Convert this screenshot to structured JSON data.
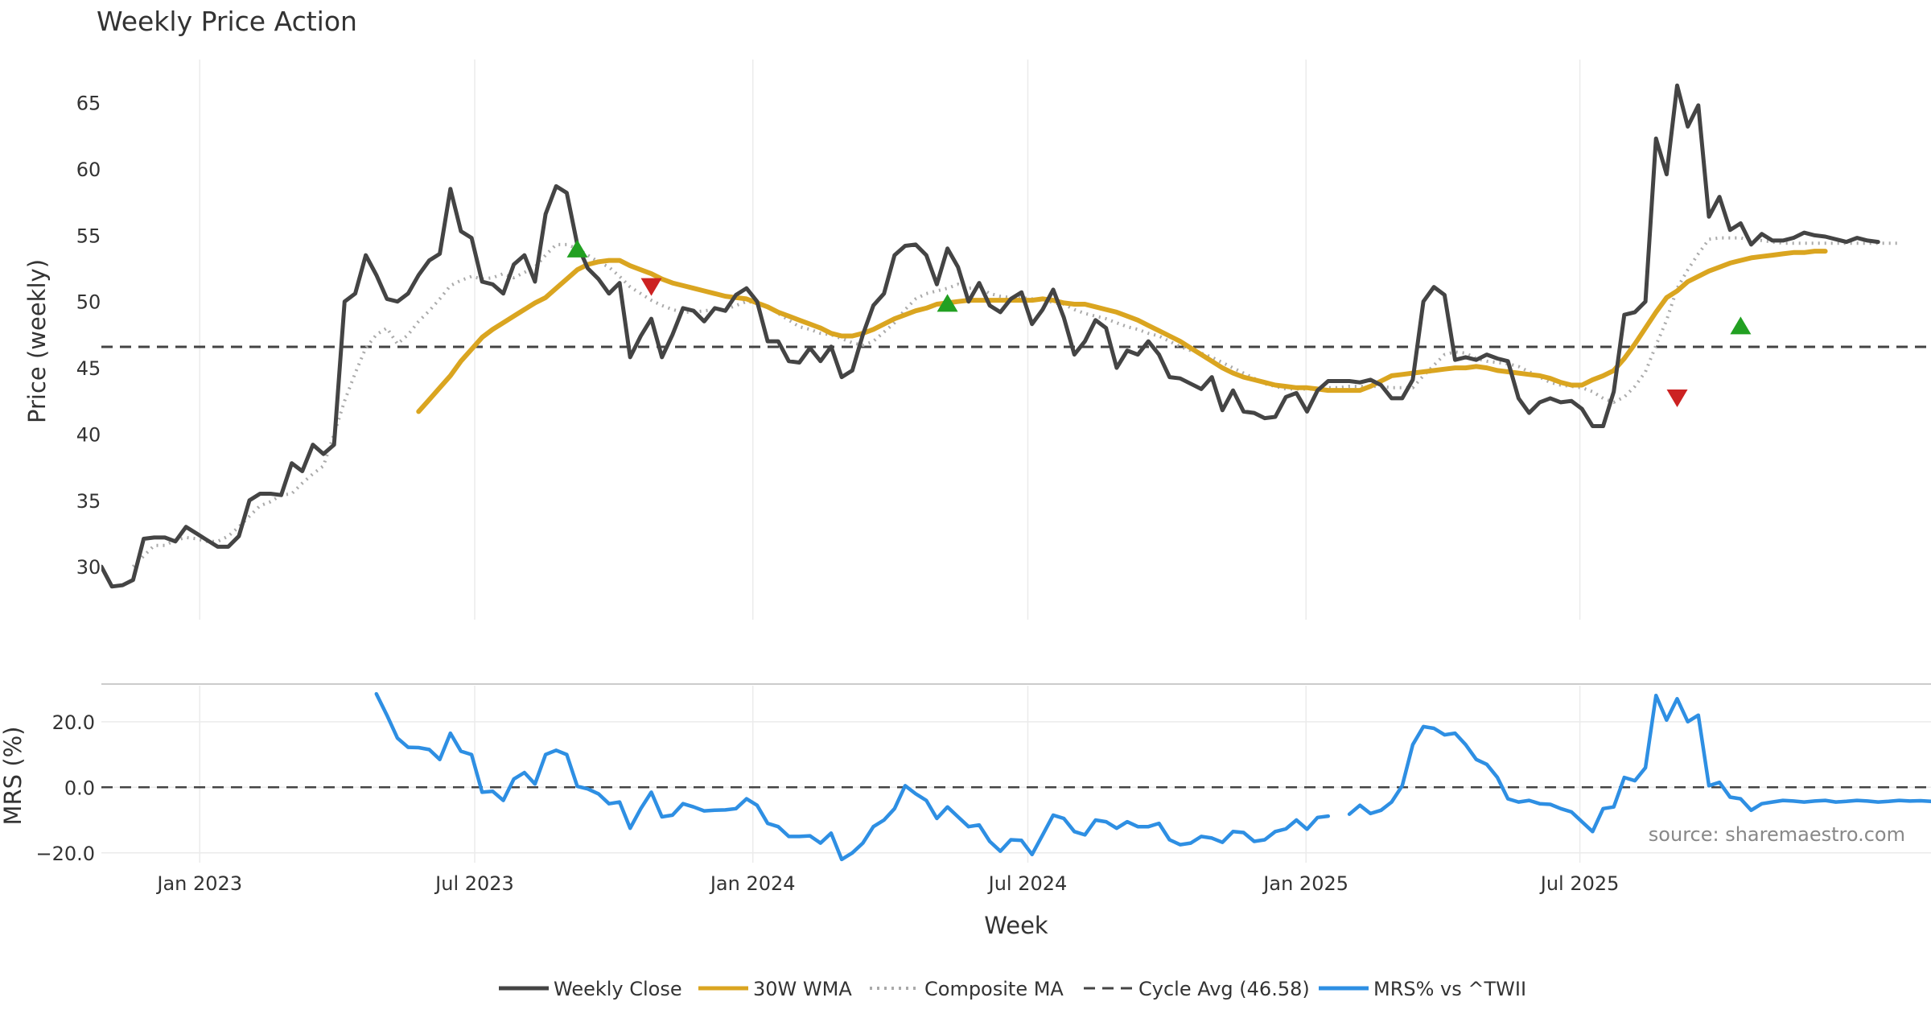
{
  "chart_data": [
    {
      "type": "line",
      "title": "Weekly Price Action",
      "ylabel": "Price (weekly)",
      "xlabel": "",
      "ylim": [
        26,
        68.5
      ],
      "yticks": [
        30,
        35,
        40,
        45,
        50,
        55,
        60,
        65
      ],
      "week_count": 174,
      "series": [
        {
          "name": "Weekly Close",
          "color": "#444444",
          "start_week": 0,
          "values": [
            30.0,
            28.5,
            28.6,
            29.0,
            32.1,
            32.2,
            32.2,
            31.9,
            33.0,
            32.5,
            32.0,
            31.5,
            31.5,
            32.3,
            35.0,
            35.5,
            35.5,
            35.4,
            37.8,
            37.2,
            39.2,
            38.5,
            39.2,
            50.0,
            50.6,
            53.5,
            52.0,
            50.2,
            50.0,
            50.6,
            52.0,
            53.1,
            53.6,
            58.5,
            55.3,
            54.8,
            51.5,
            51.3,
            50.6,
            52.8,
            53.5,
            51.5,
            56.6,
            58.7,
            58.2,
            54.3,
            52.5,
            51.7,
            50.6,
            51.4,
            45.8,
            47.4,
            48.7,
            45.8,
            47.5,
            49.5,
            49.3,
            48.5,
            49.5,
            49.3,
            50.5,
            51.0,
            50.0,
            47.0,
            47.0,
            45.5,
            45.4,
            46.5,
            45.5,
            46.6,
            44.3,
            44.8,
            47.5,
            49.7,
            50.6,
            53.5,
            54.2,
            54.3,
            53.5,
            51.3,
            54.0,
            52.6,
            50.0,
            51.4,
            49.7,
            49.2,
            50.2,
            50.7,
            48.3,
            49.4,
            50.9,
            48.8,
            46.0,
            47.0,
            48.6,
            48.0,
            45.0,
            46.3,
            46.0,
            47.0,
            46.0,
            44.3,
            44.2,
            43.8,
            43.4,
            44.3,
            41.8,
            43.3,
            41.7,
            41.6,
            41.2,
            41.3,
            42.8,
            43.1,
            41.7,
            43.3,
            44.0,
            44.0,
            44.0,
            43.9,
            44.1,
            43.7,
            42.7,
            42.7,
            44.1,
            50.0,
            51.1,
            50.5,
            45.6,
            45.8,
            45.6,
            46.0,
            45.7,
            45.5,
            42.7,
            41.6,
            42.4,
            42.7,
            42.4,
            42.5,
            41.9,
            40.6,
            40.6,
            43.2,
            49.0,
            49.2,
            50.0,
            62.3,
            59.6,
            66.3,
            63.2,
            64.8,
            56.4,
            57.9,
            55.4,
            55.9,
            54.3,
            55.1,
            54.6,
            54.6,
            54.8,
            55.2,
            55.0,
            54.9,
            54.7,
            54.5,
            54.8,
            54.6,
            54.5
          ]
        },
        {
          "name": "30W WMA",
          "color": "#DAA520",
          "start_week": 30,
          "values": [
            41.7,
            42.6,
            43.5,
            44.4,
            45.5,
            46.4,
            47.3,
            47.9,
            48.4,
            48.9,
            49.4,
            49.9,
            50.3,
            51.0,
            51.7,
            52.4,
            52.8,
            53.0,
            53.1,
            53.1,
            52.7,
            52.4,
            52.1,
            51.7,
            51.4,
            51.2,
            51.0,
            50.8,
            50.6,
            50.4,
            50.3,
            50.2,
            49.9,
            49.6,
            49.2,
            48.9,
            48.6,
            48.3,
            48.0,
            47.6,
            47.4,
            47.4,
            47.6,
            47.9,
            48.3,
            48.7,
            49.0,
            49.3,
            49.5,
            49.8,
            49.9,
            50.0,
            50.1,
            50.1,
            50.1,
            50.1,
            50.1,
            50.1,
            50.1,
            50.2,
            50.1,
            49.9,
            49.8,
            49.8,
            49.6,
            49.4,
            49.2,
            48.9,
            48.6,
            48.2,
            47.8,
            47.4,
            47.0,
            46.5,
            46.0,
            45.5,
            45.0,
            44.6,
            44.3,
            44.1,
            43.9,
            43.7,
            43.6,
            43.5,
            43.5,
            43.4,
            43.3,
            43.3,
            43.3,
            43.3,
            43.6,
            44.0,
            44.4,
            44.5,
            44.6,
            44.7,
            44.8,
            44.9,
            45.0,
            45.0,
            45.1,
            45.0,
            44.8,
            44.7,
            44.6,
            44.5,
            44.4,
            44.2,
            43.9,
            43.7,
            43.7,
            44.1,
            44.4,
            44.8,
            45.7,
            46.8,
            48.0,
            49.2,
            50.3,
            50.8,
            51.5,
            51.9,
            52.3,
            52.6,
            52.9,
            53.1,
            53.3,
            53.4,
            53.5,
            53.6,
            53.7,
            53.7,
            53.8,
            53.8
          ]
        },
        {
          "name": "Composite MA",
          "color": "#AAAAAA",
          "dash": "2,6",
          "start_week": 3,
          "values": [
            30.0,
            30.8,
            31.6,
            31.6,
            32.0,
            32.2,
            32.1,
            31.9,
            31.9,
            32.3,
            33.0,
            33.8,
            34.6,
            34.9,
            35.4,
            35.5,
            36.3,
            37.0,
            37.6,
            40.0,
            42.5,
            44.6,
            46.5,
            47.5,
            48.0,
            46.8,
            47.5,
            48.5,
            49.3,
            50.2,
            51.2,
            51.6,
            51.9,
            51.7,
            51.8,
            52.1,
            51.8,
            52.2,
            52.6,
            53.5,
            54.3,
            54.3,
            54.0,
            53.5,
            53.0,
            52.6,
            51.9,
            51.1,
            50.6,
            50.1,
            49.7,
            49.4,
            49.2,
            49.2,
            49.3,
            49.4,
            49.4,
            49.7,
            50.0,
            49.9,
            49.6,
            49.1,
            48.6,
            48.1,
            47.9,
            47.6,
            47.5,
            47.2,
            46.9,
            46.7,
            47.0,
            47.7,
            48.4,
            49.4,
            50.2,
            50.6,
            50.8,
            51.0,
            51.3,
            51.0,
            51.1,
            50.6,
            50.4,
            50.3,
            50.3,
            50.2,
            50.2,
            49.9,
            49.8,
            49.4,
            49.1,
            48.9,
            48.7,
            48.4,
            48.1,
            47.9,
            47.6,
            47.4,
            47.0,
            46.6,
            46.3,
            46.1,
            45.8,
            45.4,
            45.0,
            44.6,
            44.2,
            43.8,
            43.6,
            43.4,
            43.4,
            43.4,
            43.4,
            43.5,
            43.5,
            43.6,
            43.6,
            43.6,
            43.6,
            43.5,
            43.5,
            43.5,
            44.4,
            45.2,
            46.0,
            46.2,
            46.1,
            45.7,
            45.5,
            45.4,
            45.3,
            45.1,
            44.7,
            44.3,
            43.9,
            43.7,
            43.6,
            43.5,
            43.2,
            42.7,
            42.4,
            42.8,
            43.6,
            44.7,
            46.7,
            48.6,
            51.0,
            52.4,
            53.6,
            54.7,
            54.8,
            54.8,
            54.8,
            54.6,
            54.6,
            54.5,
            54.4,
            54.4,
            54.4,
            54.4,
            54.4,
            54.4,
            54.4,
            54.4,
            54.4,
            54.4,
            54.4,
            54.4
          ]
        },
        {
          "name": "Cycle Avg (46.58)",
          "color": "#444444",
          "dash": "14,9",
          "constant": 46.58
        }
      ],
      "signals": [
        {
          "type": "buy",
          "week": 45,
          "value": 54.0
        },
        {
          "type": "sell",
          "week": 52,
          "value": 51.1
        },
        {
          "type": "buy",
          "week": 80,
          "value": 49.9
        },
        {
          "type": "sell",
          "week": 149,
          "value": 42.7
        },
        {
          "type": "buy",
          "week": 155,
          "value": 48.2
        }
      ]
    },
    {
      "type": "line",
      "ylabel": "MRS (%)",
      "xlabel": "Week",
      "ylim": [
        -23,
        31
      ],
      "yticks": [
        -20,
        0,
        20
      ],
      "ytick_labels": [
        "−20.0",
        "0.0",
        "20.0"
      ],
      "x_tick_labels": [
        {
          "label": "Jan 2023",
          "week": 9.3
        },
        {
          "label": "Jul 2023",
          "week": 35.3
        },
        {
          "label": "Jan 2024",
          "week": 61.6
        },
        {
          "label": "Jul 2024",
          "week": 87.6
        },
        {
          "label": "Jan 2025",
          "week": 113.9
        },
        {
          "label": "Jul 2025",
          "week": 139.8
        }
      ],
      "zero_line": 0,
      "series": [
        {
          "name": "MRS% vs ^TWII",
          "color": "#2E8FE3",
          "segments": [
            {
              "start_week": 26,
              "values": [
                28.5,
                22.0,
                15.0,
                12.2,
                12.1,
                11.5,
                8.5,
                16.5,
                11.0,
                10.0,
                -1.5,
                -1.2,
                -4.0,
                2.5,
                4.5,
                1.0,
                10.0,
                11.3,
                10.0,
                0.3,
                -0.5,
                -2.0,
                -5.0,
                -4.5,
                -12.5,
                -6.5,
                -1.5,
                -9.0,
                -8.5,
                -5.0,
                -6.0,
                -7.2,
                -7.0,
                -6.9,
                -6.5,
                -3.5,
                -5.5,
                -11.0,
                -12.0,
                -15.0,
                -15.0,
                -14.8,
                -17.0,
                -14.0,
                -22.0,
                -20.0,
                -17.0,
                -12.0,
                -10.0,
                -6.5,
                0.5,
                -2.0,
                -4.0,
                -9.5,
                -6.0,
                -9.0,
                -12.0,
                -11.5,
                -16.5,
                -19.5,
                -16.0,
                -16.2,
                -20.5,
                -14.5,
                -8.5,
                -9.5,
                -13.5,
                -14.5,
                -10.0,
                -10.5,
                -12.5,
                -10.5,
                -12.0,
                -12.0,
                -11.0,
                -16.0,
                -17.5,
                -17.0,
                -15.0,
                -15.5,
                -16.8,
                -13.5,
                -13.8,
                -16.5,
                -16.0,
                -13.5,
                -12.7,
                -10.0,
                -12.8,
                -9.2,
                -8.8
              ]
            },
            {
              "start_week": 118,
              "values": [
                -8.2,
                -5.5,
                -8.0,
                -7.0,
                -4.5,
                0.5,
                13.0,
                18.5,
                18.0,
                16.0,
                16.5,
                13.0,
                8.5,
                7.0,
                3.0,
                -3.5,
                -4.5,
                -4.0,
                -5.0,
                -5.2,
                -6.5,
                -7.5,
                -10.5,
                -13.5,
                -6.5,
                -6.0,
                3.0,
                2.0,
                6.0,
                28.0,
                20.5,
                27.0,
                20.0,
                22.0,
                0.5,
                1.5,
                -3.0,
                -3.5,
                -7.0,
                -5.0,
                -4.5,
                -4.0,
                -4.2,
                -4.5,
                -4.2,
                -4.0,
                -4.5,
                -4.3,
                -4.0,
                -4.2,
                -4.5,
                -4.3,
                -4.0,
                -4.2,
                -4.1,
                -4.3
              ]
            }
          ]
        }
      ]
    }
  ],
  "legend": [
    {
      "label": "Weekly Close",
      "style": "solid",
      "color": "#444444"
    },
    {
      "label": "30W WMA",
      "style": "solid",
      "color": "#DAA520"
    },
    {
      "label": "Composite MA",
      "style": "dotted",
      "color": "#AAAAAA"
    },
    {
      "label": "Cycle Avg (46.58)",
      "style": "dashed",
      "color": "#444444"
    },
    {
      "label": "MRS% vs ^TWII",
      "style": "solid",
      "color": "#2E8FE3"
    }
  ],
  "source_text": "source: sharemaestro.com",
  "colors": {
    "buy": "#22A022",
    "sell": "#CC2222",
    "grid": "#EBEBEB"
  }
}
